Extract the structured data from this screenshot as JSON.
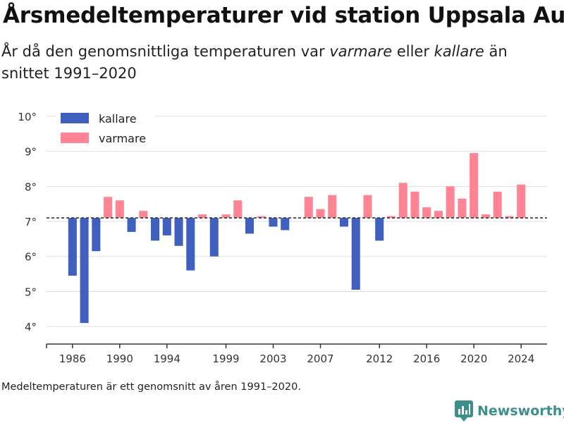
{
  "title": "Årsmedeltemperaturer vid station Uppsala Aut",
  "subtitle": {
    "prefix": "År då den genomsnittliga temperaturen var ",
    "warm_word": "varmare",
    "middle": " eller ",
    "cold_word": "kallare",
    "suffix": " än snittet 1991–2020"
  },
  "footnote": "Medeltemperaturen är ett genomsnitt av åren 1991–2020.",
  "brand": "Newsworthy",
  "colors": {
    "kallare": "#4060c0",
    "varmare": "#ff8595",
    "grid": "#dddddd",
    "axis": "#333333",
    "brand": "#3d8f8c"
  },
  "chart_data": {
    "type": "bar",
    "baseline": 7.1,
    "ylim": [
      3.5,
      10.3
    ],
    "yticks": [
      4,
      5,
      6,
      7,
      8,
      9,
      10
    ],
    "ytick_labels": [
      "4°",
      "5°",
      "6°",
      "7°",
      "8°",
      "9°",
      "10°"
    ],
    "xlim": [
      1983.8,
      2026.2
    ],
    "xticks": [
      1986,
      1990,
      1994,
      1999,
      2003,
      2007,
      2012,
      2016,
      2020,
      2024
    ],
    "xtick_labels": [
      "1986",
      "1990",
      "1994",
      "1999",
      "2003",
      "2007",
      "2012",
      "2016",
      "2020",
      "2024"
    ],
    "legend": {
      "position": "top-left",
      "entries": [
        {
          "key": "kallare",
          "label": "kallare"
        },
        {
          "key": "varmare",
          "label": "varmare"
        }
      ]
    },
    "years": [
      1986,
      1987,
      1988,
      1989,
      1990,
      1991,
      1992,
      1993,
      1994,
      1995,
      1996,
      1997,
      1998,
      1999,
      2000,
      2001,
      2002,
      2003,
      2004,
      2005,
      2006,
      2007,
      2008,
      2009,
      2010,
      2011,
      2012,
      2013,
      2014,
      2015,
      2016,
      2017,
      2018,
      2019,
      2020,
      2021,
      2022,
      2023,
      2024
    ],
    "values": [
      5.45,
      4.1,
      6.15,
      7.7,
      7.6,
      6.7,
      7.3,
      6.45,
      6.6,
      6.3,
      5.6,
      7.2,
      6.0,
      7.2,
      7.6,
      6.65,
      7.15,
      6.85,
      6.75,
      7.1,
      7.7,
      7.35,
      7.75,
      6.85,
      5.05,
      7.75,
      6.45,
      7.15,
      8.1,
      7.85,
      7.4,
      7.3,
      8.0,
      7.65,
      8.95,
      7.2,
      7.85,
      7.15,
      8.05
    ],
    "series": [
      {
        "name": "kallare",
        "color": "#4060c0"
      },
      {
        "name": "varmare",
        "color": "#ff8595"
      }
    ]
  }
}
